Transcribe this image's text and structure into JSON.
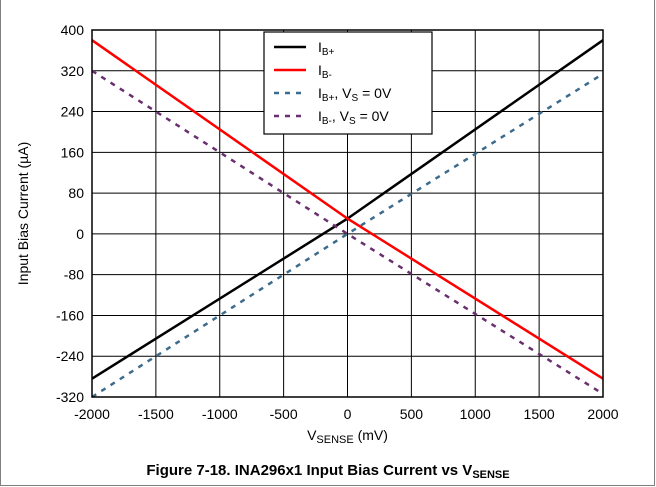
{
  "caption": {
    "text": "Figure 7-18. INA296x1 Input Bias Current vs V",
    "sub": "SENSE"
  },
  "chart_data": {
    "type": "line",
    "xlabel": {
      "main": "V",
      "sub": "SENSE",
      "rest": " (mV)"
    },
    "ylabel": "Input Bias Current (µA)",
    "xlim": [
      -2000,
      2000
    ],
    "ylim": [
      -320,
      400
    ],
    "xticks": [
      -2000,
      -1500,
      -1000,
      -500,
      0,
      500,
      1000,
      1500,
      2000
    ],
    "yticks": [
      -320,
      -240,
      -160,
      -80,
      0,
      80,
      160,
      240,
      320,
      400
    ],
    "grid": true,
    "legend_position": "top-center",
    "series": [
      {
        "label": {
          "main": "I",
          "sub": "B+",
          "rest": "",
          "sub2": "",
          "rest2": ""
        },
        "color": "#000000",
        "dash": "solid",
        "x": [
          -2000,
          0,
          2000
        ],
        "y": [
          -284,
          30,
          380
        ]
      },
      {
        "label": {
          "main": "I",
          "sub": "B-",
          "rest": "",
          "sub2": "",
          "rest2": ""
        },
        "color": "#ff0000",
        "dash": "solid",
        "x": [
          -2000,
          0,
          2000
        ],
        "y": [
          380,
          30,
          -284
        ]
      },
      {
        "label": {
          "main": "I",
          "sub": "B+",
          "rest": ", V",
          "sub2": "S",
          "rest2": " = 0V"
        },
        "color": "#3d6b8c",
        "dash": "dashed",
        "x": [
          -2000,
          0,
          2000
        ],
        "y": [
          -320,
          0,
          314
        ]
      },
      {
        "label": {
          "main": "I",
          "sub": "B-",
          "rest": ", V",
          "sub2": "S",
          "rest2": " = 0V"
        },
        "color": "#6a2f6e",
        "dash": "dashed",
        "x": [
          -2000,
          0,
          2000
        ],
        "y": [
          320,
          0,
          -314
        ]
      }
    ]
  }
}
